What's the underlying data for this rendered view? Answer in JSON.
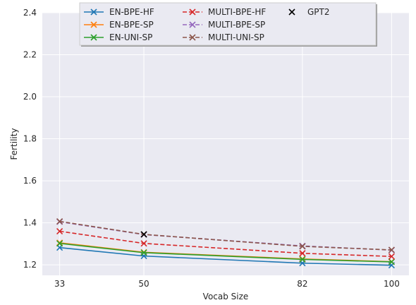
{
  "chart_data": {
    "type": "line",
    "xlabel": "Vocab Size",
    "ylabel": "Fertility",
    "x": [
      33,
      50,
      82,
      100
    ],
    "xlim": [
      29.5,
      103.5
    ],
    "ylim": [
      1.15,
      2.4
    ],
    "xticks": [
      33,
      50,
      82,
      100
    ],
    "yticks": [
      1.2,
      1.4,
      1.6,
      1.8,
      2.0,
      2.2,
      2.4
    ],
    "ytick_labels": [
      "1.2",
      "1.4",
      "1.6",
      "1.8",
      "2.0",
      "2.2",
      "2.4"
    ],
    "grid": true,
    "legend_position": "top-center",
    "background": "#eaeaf2",
    "series": [
      {
        "name": "EN-BPE-HF",
        "values": [
          1.282,
          1.242,
          1.208,
          1.198
        ],
        "color": "#1f77b4",
        "dash": "solid",
        "marker": "x"
      },
      {
        "name": "EN-BPE-SP",
        "values": [
          1.305,
          1.26,
          1.228,
          1.215
        ],
        "color": "#ff7f0e",
        "dash": "solid",
        "marker": "x"
      },
      {
        "name": "EN-UNI-SP",
        "values": [
          1.302,
          1.258,
          1.226,
          1.214
        ],
        "color": "#2ca02c",
        "dash": "solid",
        "marker": "x"
      },
      {
        "name": "MULTI-BPE-HF",
        "values": [
          1.36,
          1.302,
          1.255,
          1.24
        ],
        "color": "#d62728",
        "dash": "dashed",
        "marker": "x"
      },
      {
        "name": "MULTI-BPE-SP",
        "values": [
          1.405,
          1.344,
          1.29,
          1.27
        ],
        "color": "#9467bd",
        "dash": "dashed",
        "marker": "x"
      },
      {
        "name": "MULTI-UNI-SP",
        "values": [
          1.407,
          1.345,
          1.288,
          1.271
        ],
        "color": "#8c564b",
        "dash": "dashed",
        "marker": "x"
      },
      {
        "name": "GPT2",
        "points": [
          {
            "x": 50,
            "y": 1.345
          }
        ],
        "color": "#000000",
        "dash": "none",
        "marker": "x"
      }
    ]
  }
}
